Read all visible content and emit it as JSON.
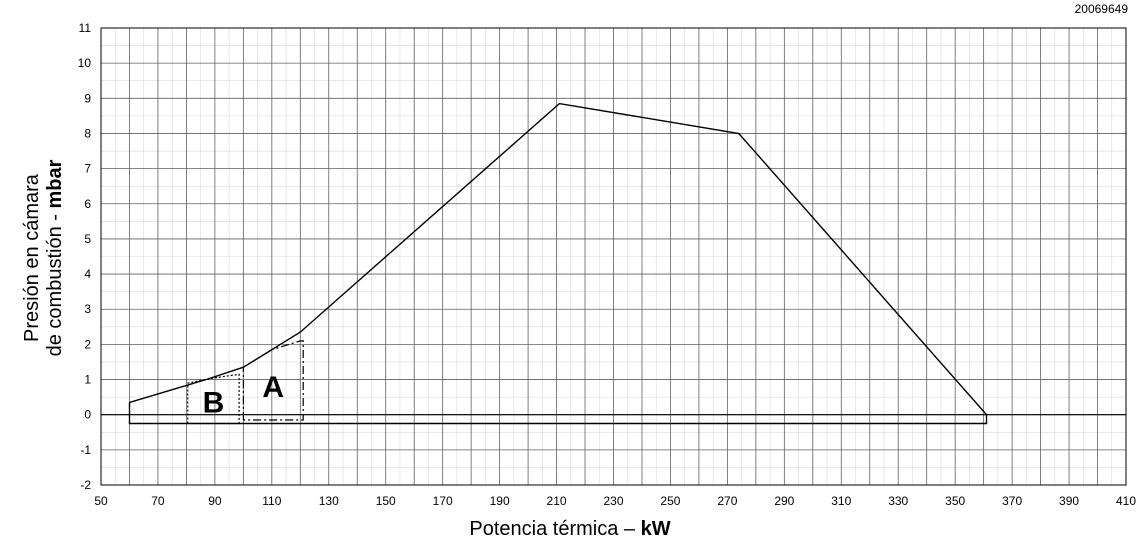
{
  "chart_data": {
    "type": "area",
    "doc_code": "20069649",
    "xlabel": {
      "text": "Potencia térmica – ",
      "unit": "kW"
    },
    "ylabel": {
      "line1": "Presión en cámara",
      "line2_text": "de combustión - ",
      "unit": "mbar"
    },
    "xlim": [
      50,
      410
    ],
    "ylim": [
      -2,
      11
    ],
    "x_ticks": [
      50,
      70,
      90,
      110,
      130,
      150,
      170,
      190,
      210,
      230,
      250,
      270,
      290,
      310,
      330,
      350,
      370,
      390,
      410
    ],
    "y_ticks": [
      -2,
      -1,
      0,
      1,
      2,
      3,
      4,
      5,
      6,
      7,
      8,
      9,
      10,
      11
    ],
    "grid": true,
    "zero_line": 0,
    "series": [
      {
        "style": "solid",
        "points": [
          [
            60,
            0.35
          ],
          [
            87,
            1.0
          ],
          [
            100,
            1.35
          ],
          [
            120,
            2.35
          ],
          [
            211,
            8.85
          ],
          [
            274,
            8.0
          ],
          [
            361,
            0
          ],
          [
            361,
            -0.25
          ],
          [
            60,
            -0.25
          ],
          [
            60,
            0.35
          ]
        ]
      }
    ],
    "regions": [
      {
        "label": "A",
        "style": "dashdot",
        "x": [
          100,
          121
        ],
        "y": [
          -0.15,
          2.1
        ],
        "top": [
          [
            100,
            1.35
          ],
          [
            110,
            1.85
          ],
          [
            120,
            2.1
          ]
        ]
      },
      {
        "label": "B",
        "style": "dotted",
        "x": [
          80.5,
          98.5
        ],
        "y": [
          -0.25,
          1.15
        ],
        "top": [
          [
            80.5,
            0.9
          ],
          [
            90,
            1.05
          ],
          [
            98.5,
            1.15
          ]
        ]
      }
    ]
  }
}
